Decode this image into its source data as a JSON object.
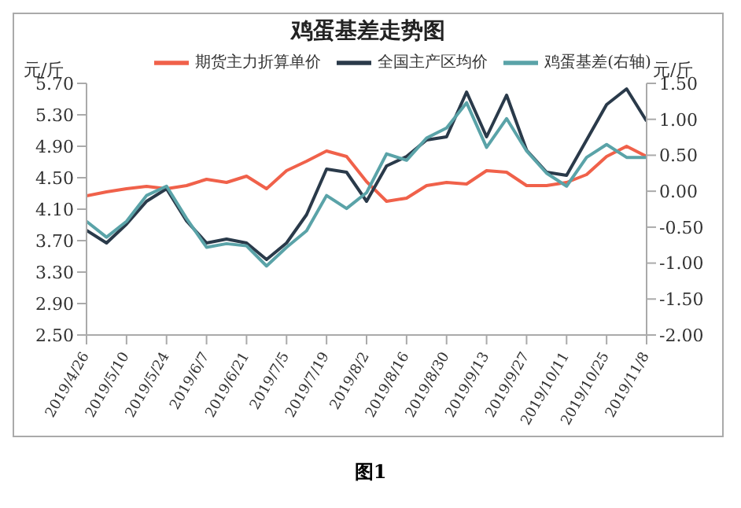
{
  "chart_data": {
    "type": "line",
    "title": "鸡蛋基差走势图",
    "ylabel": "元/斤",
    "y2label": "元/斤",
    "annotations": [
      "图1"
    ],
    "x": [
      "2019-04-26",
      "2019-05-03",
      "2019-05-10",
      "2019-05-17",
      "2019-05-24",
      "2019-05-31",
      "2019-06-07",
      "2019-06-14",
      "2019-06-21",
      "2019-06-28",
      "2019-07-05",
      "2019-07-12",
      "2019-07-19",
      "2019-07-26",
      "2019-08-02",
      "2019-08-09",
      "2019-08-16",
      "2019-08-23",
      "2019-08-30",
      "2019-09-06",
      "2019-09-13",
      "2019-09-20",
      "2019-09-27",
      "2019-10-04",
      "2019-10-11",
      "2019-10-18",
      "2019-10-25",
      "2019-11-01",
      "2019-11-08"
    ],
    "series": [
      {
        "name": "期货主力折算单价",
        "color": "#f0614a",
        "values": [
          4.27,
          4.32,
          4.36,
          4.39,
          4.36,
          4.4,
          4.48,
          4.44,
          4.52,
          4.36,
          4.59,
          4.71,
          4.84,
          4.77,
          4.45,
          4.2,
          4.24,
          4.4,
          4.44,
          4.42,
          4.59,
          4.57,
          4.4,
          4.4,
          4.44,
          4.54,
          4.77,
          4.9,
          4.77
        ]
      },
      {
        "name": "全国主产区均价",
        "color": "#2a3a4a",
        "values": [
          3.83,
          3.67,
          3.91,
          4.2,
          4.36,
          3.95,
          3.67,
          3.72,
          3.67,
          3.46,
          3.67,
          4.03,
          4.61,
          4.57,
          4.2,
          4.65,
          4.77,
          4.98,
          5.02,
          5.59,
          5.02,
          5.55,
          4.85,
          4.57,
          4.53,
          4.98,
          5.43,
          5.63,
          5.22
        ]
      },
      {
        "name": "鸡蛋基差(右轴)",
        "color": "#5aa3a8",
        "axis": "y2",
        "values": [
          -0.42,
          -0.64,
          -0.42,
          -0.06,
          0.07,
          -0.38,
          -0.78,
          -0.73,
          -0.76,
          -1.04,
          -0.78,
          -0.55,
          -0.06,
          -0.24,
          -0.02,
          0.52,
          0.43,
          0.74,
          0.88,
          1.23,
          0.61,
          1.01,
          0.56,
          0.25,
          0.07,
          0.47,
          0.65,
          0.47,
          0.47
        ]
      }
    ],
    "xlim": [
      "2019-04-26",
      "2019-11-08"
    ],
    "xticks": [
      {
        "value": "2019-04-26",
        "label": "2019/4/26"
      },
      {
        "value": "2019-05-10",
        "label": "2019/5/10"
      },
      {
        "value": "2019-05-24",
        "label": "2019/5/24"
      },
      {
        "value": "2019-06-07",
        "label": "2019/6/7"
      },
      {
        "value": "2019-06-21",
        "label": "2019/6/21"
      },
      {
        "value": "2019-07-05",
        "label": "2019/7/5"
      },
      {
        "value": "2019-07-19",
        "label": "2019/7/19"
      },
      {
        "value": "2019-08-02",
        "label": "2019/8/2"
      },
      {
        "value": "2019-08-16",
        "label": "2019/8/16"
      },
      {
        "value": "2019-08-30",
        "label": "2019/8/30"
      },
      {
        "value": "2019-09-13",
        "label": "2019/9/13"
      },
      {
        "value": "2019-09-27",
        "label": "2019/9/27"
      },
      {
        "value": "2019-10-11",
        "label": "2019/10/11"
      },
      {
        "value": "2019-10-25",
        "label": "2019/10/25"
      },
      {
        "value": "2019-11-08",
        "label": "2019/11/8"
      }
    ],
    "ylim": [
      2.5,
      5.7
    ],
    "yticks": [
      {
        "value": 2.5,
        "label": "2.50"
      },
      {
        "value": 2.9,
        "label": "2.90"
      },
      {
        "value": 3.3,
        "label": "3.30"
      },
      {
        "value": 3.7,
        "label": "3.70"
      },
      {
        "value": 4.1,
        "label": "4.10"
      },
      {
        "value": 4.5,
        "label": "4.50"
      },
      {
        "value": 4.9,
        "label": "4.90"
      },
      {
        "value": 5.3,
        "label": "5.30"
      },
      {
        "value": 5.7,
        "label": "5.70"
      }
    ],
    "y2lim": [
      -2,
      1.5
    ],
    "y2ticks": [
      {
        "value": -2,
        "label": "-2.00"
      },
      {
        "value": -1.5,
        "label": "-1.50"
      },
      {
        "value": -1,
        "label": "-1.00"
      },
      {
        "value": -0.5,
        "label": "-0.50"
      },
      {
        "value": 0,
        "label": "0.00"
      },
      {
        "value": 0.5,
        "label": "0.50"
      },
      {
        "value": 1,
        "label": "1.00"
      },
      {
        "value": 1.5,
        "label": "1.50"
      }
    ],
    "grid": false,
    "legend": "top",
    "marker": "none",
    "line_style": "solid"
  }
}
